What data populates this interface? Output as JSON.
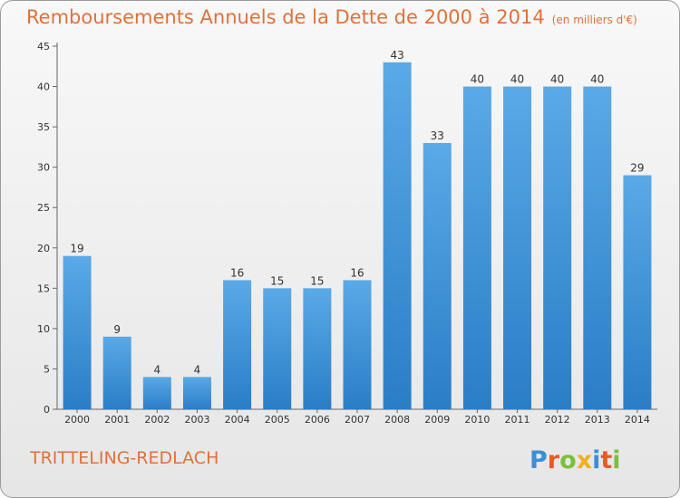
{
  "header": {
    "title": "Remboursements Annuels de la Dette de 2000 à 2014",
    "unit": "(en milliers d'€)"
  },
  "footer": {
    "commune": "TRITTELING-REDLACH",
    "logo_text": "Proxiti"
  },
  "colors": {
    "accent": "#e0713a",
    "bar_top": "#5aa9e8",
    "bar_bottom": "#2a7ec6"
  },
  "chart_data": {
    "type": "bar",
    "title": "Remboursements Annuels de la Dette de 2000 à 2014",
    "xlabel": "",
    "ylabel": "",
    "categories": [
      "2000",
      "2001",
      "2002",
      "2003",
      "2004",
      "2005",
      "2006",
      "2007",
      "2008",
      "2009",
      "2010",
      "2011",
      "2012",
      "2013",
      "2014"
    ],
    "values": [
      19,
      9,
      4,
      4,
      16,
      15,
      15,
      16,
      43,
      33,
      40,
      40,
      40,
      40,
      29
    ],
    "ylim": [
      0,
      45
    ],
    "yticks": [
      0,
      5,
      10,
      15,
      20,
      25,
      30,
      35,
      40,
      45
    ],
    "grid": false,
    "data_labels": true
  }
}
